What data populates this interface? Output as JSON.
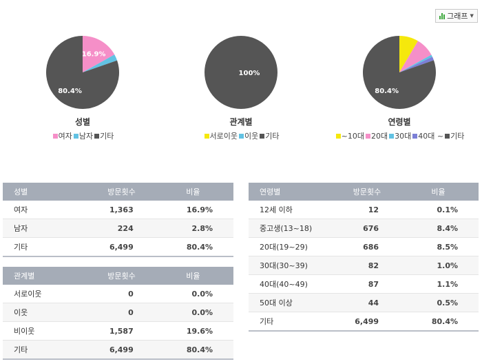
{
  "graph_button": {
    "label": "그래프"
  },
  "pies": [
    {
      "title": "성별",
      "slices": [
        {
          "name": "여자",
          "value": 16.9,
          "color": "#f58fc8",
          "label": "16.9%"
        },
        {
          "name": "남자",
          "value": 2.8,
          "color": "#62c2e3",
          "label": ""
        },
        {
          "name": "기타",
          "value": 80.4,
          "color": "#555555",
          "label": "80.4%"
        }
      ]
    },
    {
      "title": "관계별",
      "slices": [
        {
          "name": "서로이웃",
          "value": 0,
          "color": "#f5e80c",
          "label": ""
        },
        {
          "name": "이웃",
          "value": 0,
          "color": "#62c2e3",
          "label": ""
        },
        {
          "name": "기타",
          "value": 100,
          "color": "#555555",
          "label": "100%"
        }
      ]
    },
    {
      "title": "연령별",
      "slices": [
        {
          "name": "~10대",
          "value": 8.5,
          "color": "#f5e80c",
          "label": ""
        },
        {
          "name": "20대",
          "value": 8.5,
          "color": "#f58fc8",
          "label": ""
        },
        {
          "name": "30대",
          "value": 1.0,
          "color": "#62c2e3",
          "label": ""
        },
        {
          "name": "40대 ~",
          "value": 1.6,
          "color": "#7b7fd6",
          "label": ""
        },
        {
          "name": "기타",
          "value": 80.4,
          "color": "#555555",
          "label": "80.4%"
        }
      ]
    }
  ],
  "tables": {
    "gender": {
      "headers": [
        "성별",
        "방문횟수",
        "비율"
      ],
      "rows": [
        [
          "여자",
          "1,363",
          "16.9%"
        ],
        [
          "남자",
          "224",
          "2.8%"
        ],
        [
          "기타",
          "6,499",
          "80.4%"
        ]
      ]
    },
    "relation": {
      "headers": [
        "관계별",
        "방문횟수",
        "비율"
      ],
      "rows": [
        [
          "서로이웃",
          "0",
          "0.0%"
        ],
        [
          "이웃",
          "0",
          "0.0%"
        ],
        [
          "비이웃",
          "1,587",
          "19.6%"
        ],
        [
          "기타",
          "6,499",
          "80.4%"
        ]
      ]
    },
    "age": {
      "headers": [
        "연령별",
        "방문횟수",
        "비율"
      ],
      "rows": [
        [
          "12세 이하",
          "12",
          "0.1%"
        ],
        [
          "중고생(13~18)",
          "676",
          "8.4%"
        ],
        [
          "20대(19~29)",
          "686",
          "8.5%"
        ],
        [
          "30대(30~39)",
          "82",
          "1.0%"
        ],
        [
          "40대(40~49)",
          "87",
          "1.1%"
        ],
        [
          "50대 이상",
          "44",
          "0.5%"
        ],
        [
          "기타",
          "6,499",
          "80.4%"
        ]
      ]
    }
  }
}
